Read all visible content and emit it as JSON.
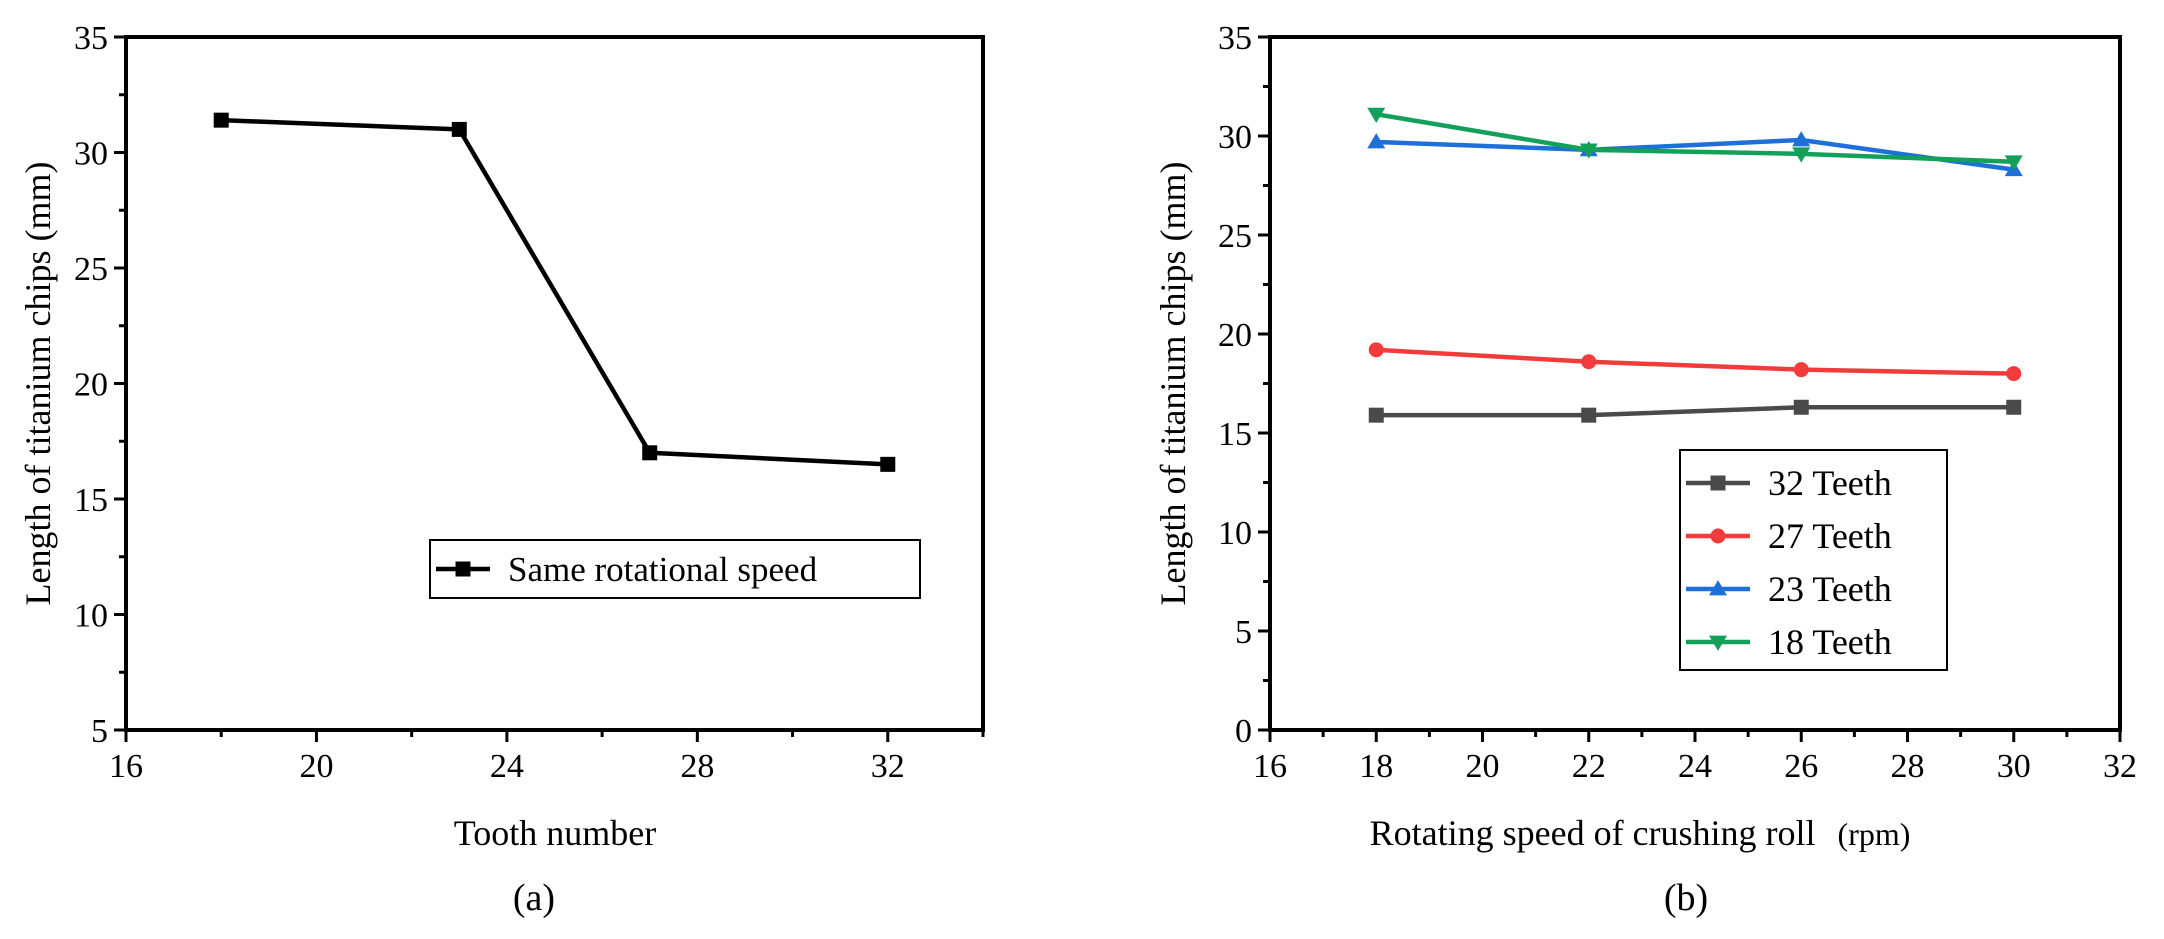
{
  "chart_data": [
    {
      "type": "line",
      "panel_label": "(a)",
      "xlabel": "Tooth number",
      "ylabel": "Length of titanium chips (mm)",
      "xlim": [
        16,
        34
      ],
      "ylim": [
        5,
        35
      ],
      "xticks": [
        16,
        20,
        24,
        28,
        32
      ],
      "yticks": [
        5,
        10,
        15,
        20,
        25,
        30,
        35
      ],
      "x_minor_step": 2,
      "y_minor_step": 2.5,
      "legend_position": "lower-right",
      "series": [
        {
          "name": "Same rotational speed",
          "color": "#000000",
          "marker": "square",
          "x": [
            18,
            23,
            27,
            32
          ],
          "y": [
            31.4,
            31.0,
            17.0,
            16.5
          ]
        }
      ]
    },
    {
      "type": "line",
      "panel_label": "(b)",
      "xlabel": "Rotating speed of crushing roll",
      "xlabel_unit": "(rpm)",
      "ylabel": "Length of titanium chips (mm)",
      "xlim": [
        16,
        32
      ],
      "ylim": [
        0,
        35
      ],
      "xticks": [
        16,
        18,
        20,
        22,
        24,
        26,
        28,
        30,
        32
      ],
      "yticks": [
        0,
        5,
        10,
        15,
        20,
        25,
        30,
        35
      ],
      "x_minor_step": 1,
      "y_minor_step": 2.5,
      "legend_position": "lower-right",
      "series": [
        {
          "name": "32 Teeth",
          "color": "#4a4a4a",
          "marker": "square",
          "x": [
            18,
            22,
            26,
            30
          ],
          "y": [
            15.9,
            15.9,
            16.3,
            16.3
          ]
        },
        {
          "name": "27 Teeth",
          "color": "#f23b3b",
          "marker": "circle",
          "x": [
            18,
            22,
            26,
            30
          ],
          "y": [
            19.2,
            18.6,
            18.2,
            18.0
          ]
        },
        {
          "name": "23 Teeth",
          "color": "#1f6fd8",
          "marker": "triangle-up",
          "x": [
            18,
            22,
            26,
            30
          ],
          "y": [
            29.7,
            29.3,
            29.8,
            28.3
          ]
        },
        {
          "name": "18 Teeth",
          "color": "#13a15a",
          "marker": "triangle-down",
          "x": [
            18,
            22,
            26,
            30
          ],
          "y": [
            31.1,
            29.3,
            29.1,
            28.7
          ]
        }
      ]
    }
  ]
}
